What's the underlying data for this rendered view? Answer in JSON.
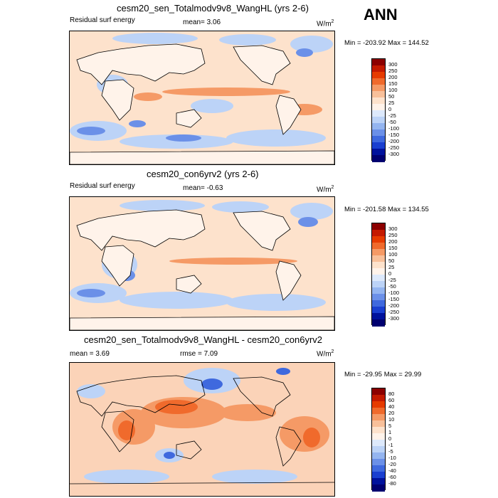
{
  "season": "ANN",
  "panels": [
    {
      "title": "cesm20_sen_Totalmodv9v8_WangHL (yrs 2-6)",
      "left_label": "Residual surf energy",
      "center_label": "mean=  3.06",
      "units": "W/m",
      "units_sup": "2",
      "minmax": "Min = -203.92 Max = 144.52",
      "levels": [
        "300",
        "250",
        "200",
        "150",
        "100",
        "50",
        "25",
        "0",
        "-25",
        "-50",
        "-100",
        "-150",
        "-200",
        "-250",
        "-300"
      ],
      "colors": [
        "#8c0000",
        "#c41a00",
        "#e63b00",
        "#f06a2c",
        "#f59a66",
        "#f8c09a",
        "#fde2cc",
        "#fff3ea",
        "#dde9fb",
        "#bcd3f7",
        "#94b5f0",
        "#6b90e8",
        "#3f69de",
        "#1a3fd0",
        "#00129c",
        "#000070"
      ],
      "background": "#fde2cc"
    },
    {
      "title": "cesm20_con6yrv2 (yrs 2-6)",
      "left_label": "Residual surf energy",
      "center_label": "mean=  -0.63",
      "units": "W/m",
      "units_sup": "2",
      "minmax": "Min = -201.58 Max = 134.55",
      "levels": [
        "300",
        "250",
        "200",
        "150",
        "100",
        "50",
        "25",
        "0",
        "-25",
        "-50",
        "-100",
        "-150",
        "-200",
        "-250",
        "-300"
      ],
      "colors": [
        "#8c0000",
        "#c41a00",
        "#e63b00",
        "#f06a2c",
        "#f59a66",
        "#f8c09a",
        "#fde2cc",
        "#fff3ea",
        "#dde9fb",
        "#bcd3f7",
        "#94b5f0",
        "#6b90e8",
        "#3f69de",
        "#1a3fd0",
        "#00129c",
        "#000070"
      ],
      "background": "#fde2cc"
    },
    {
      "title": "cesm20_sen_Totalmodv9v8_WangHL - cesm20_con6yrv2",
      "left_label": "mean =  3.69",
      "center_label": "rmse =  7.09",
      "units": "W/m",
      "units_sup": "2",
      "minmax": "Min = -29.95 Max =  29.99",
      "levels": [
        "80",
        "60",
        "40",
        "20",
        "10",
        "5",
        "1",
        "0",
        "-1",
        "-5",
        "-10",
        "-20",
        "-40",
        "-60",
        "-80"
      ],
      "colors": [
        "#8c0000",
        "#c41a00",
        "#e63b00",
        "#f06a2c",
        "#f59a66",
        "#f8c09a",
        "#fde2cc",
        "#fff3ea",
        "#dde9fb",
        "#bcd3f7",
        "#94b5f0",
        "#6b90e8",
        "#3f69de",
        "#1a3fd0",
        "#00129c",
        "#000070"
      ],
      "background": "#fbd3b8"
    }
  ]
}
